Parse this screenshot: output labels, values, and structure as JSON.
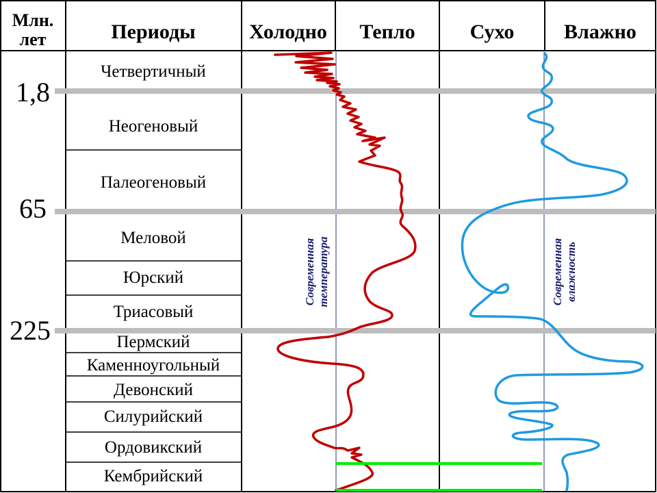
{
  "header": {
    "age_label_line1": "Млн.",
    "age_label_line2": "лет",
    "periods": "Периоды",
    "cold": "Холодно",
    "warm": "Тепло",
    "dry": "Сухо",
    "wet": "Влажно"
  },
  "ages": [
    "1,8",
    "65",
    "225"
  ],
  "periods": [
    "Четвертичный",
    "Неогеновый",
    "Палеогеновый",
    "Меловой",
    "Юрский",
    "Триасовый",
    "Пермский",
    "Каменноугольный",
    "Девонский",
    "Силурийский",
    "Ордовикский",
    "Кембрийский"
  ],
  "labels": {
    "modern_temp_line1": "Современная",
    "modern_temp_line2": "температура",
    "modern_hum_line1": "Современная",
    "modern_hum_line2": "влажность"
  },
  "colors": {
    "temperature_curve": "#c00000",
    "humidity_curve": "#1f9ae0",
    "era_line": "#bdbdbd",
    "baseline": "#00ee00",
    "reference_line": "#4a5a8a"
  }
}
